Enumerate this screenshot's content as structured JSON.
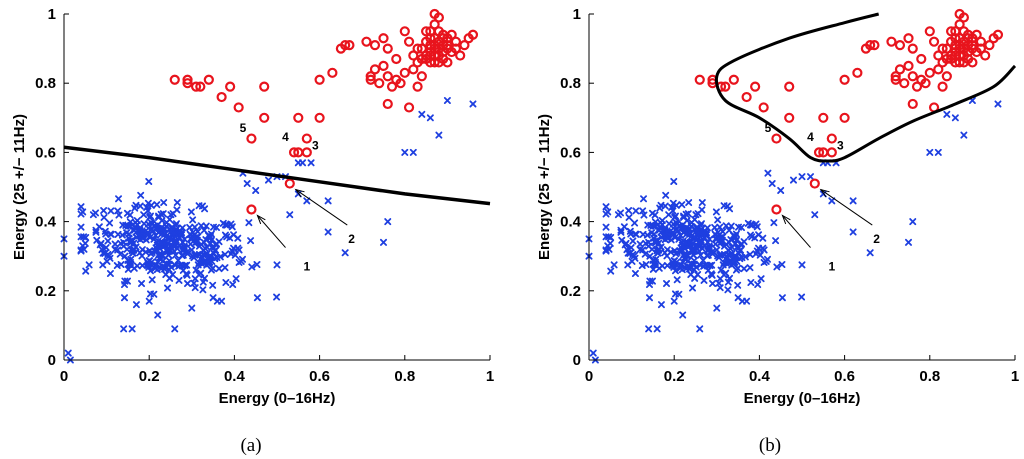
{
  "chart_data": [
    {
      "type": "scatter",
      "caption": "(a)",
      "xlabel": "Energy (0–16Hz)",
      "ylabel": "Energy (25 +/− 11Hz)",
      "xlim": [
        0,
        1
      ],
      "ylim": [
        0,
        1
      ],
      "xticks": [
        "0",
        "0.2",
        "0.4",
        "0.6",
        "0.8",
        "1"
      ],
      "yticks": [
        "0",
        "0.2",
        "0.4",
        "0.6",
        "0.8",
        "1"
      ],
      "boundary": [
        [
          0.0,
          0.615
        ],
        [
          0.2,
          0.585
        ],
        [
          0.4,
          0.55
        ],
        [
          0.6,
          0.515
        ],
        [
          0.8,
          0.48
        ],
        [
          1.0,
          0.452
        ]
      ],
      "annotations": [
        {
          "label": "1",
          "pt": [
            0.44,
            0.435
          ],
          "text": [
            0.57,
            0.27
          ],
          "arrow_from": [
            0.52,
            0.325
          ]
        },
        {
          "label": "2",
          "pt": [
            0.53,
            0.51
          ],
          "text": [
            0.675,
            0.35
          ],
          "arrow_from": [
            0.665,
            0.39
          ]
        },
        {
          "label": "3",
          "pt": [
            0.57,
            0.6
          ],
          "text": [
            0.59,
            0.62
          ]
        },
        {
          "label": "4",
          "pt": [
            0.54,
            0.6
          ],
          "text": [
            0.52,
            0.645
          ]
        },
        {
          "label": "5",
          "pt": [
            0.44,
            0.64
          ],
          "text": [
            0.42,
            0.67
          ]
        }
      ]
    },
    {
      "type": "scatter",
      "caption": "(b)",
      "xlabel": "Energy (0–16Hz)",
      "ylabel": "Energy (25 +/− 11Hz)",
      "xlim": [
        0,
        1
      ],
      "ylim": [
        0,
        1
      ],
      "xticks": [
        "0",
        "0.2",
        "0.4",
        "0.6",
        "0.8",
        "1"
      ],
      "yticks": [
        "0",
        "0.2",
        "0.4",
        "0.6",
        "0.8",
        "1"
      ],
      "boundary": [
        [
          0.68,
          1.0
        ],
        [
          0.6,
          0.975
        ],
        [
          0.47,
          0.93
        ],
        [
          0.34,
          0.865
        ],
        [
          0.3,
          0.82
        ],
        [
          0.32,
          0.75
        ],
        [
          0.4,
          0.7
        ],
        [
          0.47,
          0.64
        ],
        [
          0.52,
          0.585
        ],
        [
          0.56,
          0.575
        ],
        [
          0.6,
          0.585
        ],
        [
          0.68,
          0.64
        ],
        [
          0.76,
          0.69
        ],
        [
          0.86,
          0.74
        ],
        [
          0.95,
          0.79
        ],
        [
          1.0,
          0.85
        ]
      ],
      "annotations": [
        {
          "label": "1",
          "pt": [
            0.44,
            0.435
          ],
          "text": [
            0.57,
            0.27
          ],
          "arrow_from": [
            0.52,
            0.325
          ]
        },
        {
          "label": "2",
          "pt": [
            0.53,
            0.51
          ],
          "text": [
            0.675,
            0.35
          ],
          "arrow_from": [
            0.665,
            0.39
          ]
        },
        {
          "label": "3",
          "pt": [
            0.57,
            0.6
          ],
          "text": [
            0.59,
            0.62
          ]
        },
        {
          "label": "4",
          "pt": [
            0.54,
            0.6
          ],
          "text": [
            0.52,
            0.645
          ]
        },
        {
          "label": "5",
          "pt": [
            0.44,
            0.64
          ],
          "text": [
            0.42,
            0.67
          ]
        }
      ]
    }
  ],
  "series": {
    "class_red": {
      "name": "red circles",
      "color": "#e8141d",
      "points": [
        [
          0.26,
          0.81
        ],
        [
          0.29,
          0.81
        ],
        [
          0.31,
          0.79
        ],
        [
          0.32,
          0.79
        ],
        [
          0.29,
          0.8
        ],
        [
          0.34,
          0.81
        ],
        [
          0.37,
          0.76
        ],
        [
          0.39,
          0.79
        ],
        [
          0.41,
          0.73
        ],
        [
          0.47,
          0.79
        ],
        [
          0.47,
          0.7
        ],
        [
          0.44,
          0.64
        ],
        [
          0.55,
          0.7
        ],
        [
          0.6,
          0.7
        ],
        [
          0.57,
          0.64
        ],
        [
          0.54,
          0.6
        ],
        [
          0.55,
          0.6
        ],
        [
          0.57,
          0.6
        ],
        [
          0.53,
          0.51
        ],
        [
          0.44,
          0.435
        ],
        [
          0.6,
          0.81
        ],
        [
          0.63,
          0.83
        ],
        [
          0.65,
          0.9
        ],
        [
          0.66,
          0.91
        ],
        [
          0.67,
          0.91
        ],
        [
          0.71,
          0.92
        ],
        [
          0.73,
          0.91
        ],
        [
          0.75,
          0.93
        ],
        [
          0.76,
          0.9
        ],
        [
          0.78,
          0.87
        ],
        [
          0.8,
          0.95
        ],
        [
          0.81,
          0.92
        ],
        [
          0.72,
          0.81
        ],
        [
          0.72,
          0.82
        ],
        [
          0.73,
          0.84
        ],
        [
          0.74,
          0.8
        ],
        [
          0.75,
          0.85
        ],
        [
          0.76,
          0.82
        ],
        [
          0.78,
          0.81
        ],
        [
          0.79,
          0.8
        ],
        [
          0.8,
          0.83
        ],
        [
          0.76,
          0.74
        ],
        [
          0.81,
          0.73
        ],
        [
          0.77,
          0.79
        ],
        [
          0.82,
          0.88
        ],
        [
          0.83,
          0.86
        ],
        [
          0.84,
          0.9
        ],
        [
          0.85,
          0.92
        ],
        [
          0.85,
          0.88
        ],
        [
          0.86,
          0.95
        ],
        [
          0.86,
          0.91
        ],
        [
          0.86,
          0.89
        ],
        [
          0.87,
          1.0
        ],
        [
          0.87,
          0.97
        ],
        [
          0.87,
          0.93
        ],
        [
          0.87,
          0.9
        ],
        [
          0.88,
          0.99
        ],
        [
          0.88,
          0.88
        ],
        [
          0.88,
          0.86
        ],
        [
          0.88,
          0.92
        ],
        [
          0.89,
          0.94
        ],
        [
          0.89,
          0.91
        ],
        [
          0.89,
          0.87
        ],
        [
          0.9,
          0.9
        ],
        [
          0.9,
          0.93
        ],
        [
          0.91,
          0.89
        ],
        [
          0.92,
          0.92
        ],
        [
          0.93,
          0.88
        ],
        [
          0.95,
          0.93
        ],
        [
          0.96,
          0.94
        ],
        [
          0.84,
          0.82
        ],
        [
          0.82,
          0.84
        ],
        [
          0.83,
          0.79
        ],
        [
          0.86,
          0.86
        ],
        [
          0.9,
          0.86
        ],
        [
          0.87,
          0.86
        ],
        [
          0.85,
          0.87
        ],
        [
          0.88,
          0.9
        ],
        [
          0.86,
          0.88
        ],
        [
          0.89,
          0.89
        ],
        [
          0.87,
          0.88
        ],
        [
          0.84,
          0.87
        ],
        [
          0.92,
          0.9
        ],
        [
          0.94,
          0.91
        ],
        [
          0.83,
          0.9
        ],
        [
          0.85,
          0.95
        ],
        [
          0.91,
          0.94
        ],
        [
          0.88,
          0.95
        ],
        [
          0.86,
          0.93
        ],
        [
          0.87,
          0.91
        ],
        [
          0.89,
          0.93
        ],
        [
          0.9,
          0.91
        ]
      ]
    },
    "class_blue": {
      "name": "blue crosses",
      "color": "#1e3fe0",
      "outliers": [
        [
          0.01,
          0.02
        ],
        [
          0.015,
          0.0
        ],
        [
          0.0,
          0.35
        ],
        [
          0.0,
          0.3
        ],
        [
          0.14,
          0.09
        ],
        [
          0.16,
          0.09
        ],
        [
          0.26,
          0.09
        ],
        [
          0.17,
          0.16
        ],
        [
          0.22,
          0.13
        ],
        [
          0.35,
          0.18
        ],
        [
          0.37,
          0.17
        ],
        [
          0.36,
          0.17
        ],
        [
          0.2,
          0.17
        ],
        [
          0.3,
          0.15
        ],
        [
          0.42,
          0.54
        ],
        [
          0.43,
          0.51
        ],
        [
          0.45,
          0.49
        ],
        [
          0.48,
          0.52
        ],
        [
          0.52,
          0.53
        ],
        [
          0.5,
          0.53
        ],
        [
          0.55,
          0.57
        ],
        [
          0.56,
          0.57
        ],
        [
          0.58,
          0.57
        ],
        [
          0.62,
          0.37
        ],
        [
          0.66,
          0.31
        ],
        [
          0.76,
          0.4
        ],
        [
          0.75,
          0.34
        ],
        [
          0.8,
          0.6
        ],
        [
          0.82,
          0.6
        ],
        [
          0.84,
          0.71
        ],
        [
          0.86,
          0.7
        ],
        [
          0.9,
          0.75
        ],
        [
          0.96,
          0.74
        ],
        [
          0.88,
          0.65
        ],
        [
          0.55,
          0.48
        ],
        [
          0.57,
          0.46
        ],
        [
          0.53,
          0.42
        ],
        [
          0.62,
          0.46
        ]
      ]
    }
  }
}
